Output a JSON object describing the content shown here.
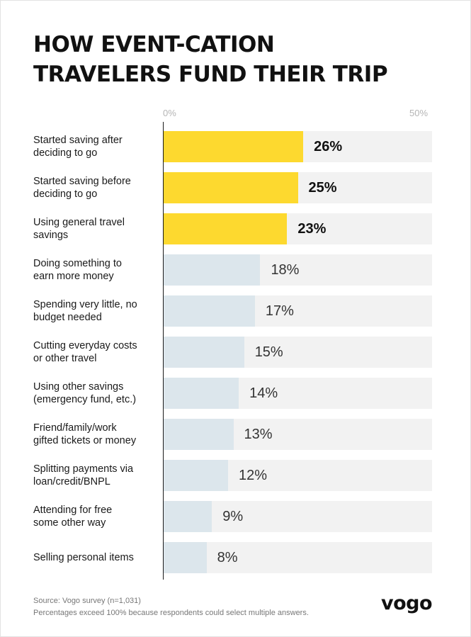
{
  "title_lines": [
    "HOW EVENT-CATION",
    "TRAVELERS FUND THEIR TRIP"
  ],
  "footer": {
    "source": "Source: Vogo survey (n=1,031)",
    "note": "Percentages exceed 100% because respondents could select multiple answers."
  },
  "brand": "vogo",
  "colors": {
    "highlight_bar": "#fdd92f",
    "other_bar": "#dce6ec",
    "track": "#f2f2f2"
  },
  "chart_data": {
    "type": "bar",
    "orientation": "horizontal",
    "title": "HOW EVENT-CATION TRAVELERS FUND THEIR TRIP",
    "xlim": [
      0,
      50
    ],
    "tick_labels": [
      "0%",
      "50%"
    ],
    "grid": false,
    "highlight_count": 3,
    "categories": [
      "Started saving after deciding to go",
      "Started saving before deciding to go",
      "Using general travel savings",
      "Doing something to earn more money",
      "Spending very little, no budget needed",
      "Cutting everyday costs or other travel",
      "Using other savings (emergency fund, etc.)",
      "Friend/family/work gifted tickets or money",
      "Splitting payments via loan/credit/BNPL",
      "Attending for free some other way",
      "Selling personal items"
    ],
    "label_lines": [
      [
        "Started saving after",
        "deciding to go"
      ],
      [
        "Started saving before",
        "deciding to go"
      ],
      [
        "Using general travel",
        "savings"
      ],
      [
        "Doing something to",
        "earn more money"
      ],
      [
        "Spending very little, no",
        "budget needed"
      ],
      [
        "Cutting everyday costs",
        "or other travel"
      ],
      [
        "Using other savings",
        "(emergency fund, etc.)"
      ],
      [
        "Friend/family/work",
        "gifted tickets or money"
      ],
      [
        "Splitting payments via",
        "loan/credit/BNPL"
      ],
      [
        "Attending for free",
        "some other way"
      ],
      [
        "Selling personal items"
      ]
    ],
    "values": [
      26,
      25,
      23,
      18,
      17,
      15,
      14,
      13,
      12,
      9,
      8
    ],
    "value_labels": [
      "26%",
      "25%",
      "23%",
      "18%",
      "17%",
      "15%",
      "14%",
      "13%",
      "12%",
      "9%",
      "8%"
    ]
  }
}
